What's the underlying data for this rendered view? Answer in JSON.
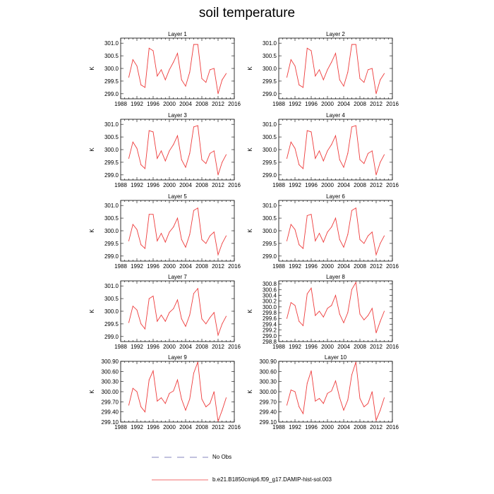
{
  "title": "soil temperature",
  "legend": [
    {
      "label": "No Obs",
      "color": "#5c5ca8",
      "style": "dashed"
    },
    {
      "label": "b.e21.B1850cmip6.f09_g17.DAMIP-hist-sol.003",
      "color": "#ee3b3b",
      "style": "solid"
    }
  ],
  "chart_data": [
    {
      "type": "line",
      "title": "Layer 1",
      "xlabel": "",
      "ylabel": "K",
      "xlim": [
        1988,
        2016
      ],
      "xticks": [
        "1988",
        "1992",
        "1996",
        "2000",
        "2004",
        "2008",
        "2012",
        "2016"
      ],
      "ylim": [
        298.8,
        301.2
      ],
      "yticks": [
        "299.0",
        "299.5",
        "300.0",
        "300.5",
        "301.0"
      ],
      "series": [
        {
          "name": "b.e21.B1850cmip6.f09_g17.DAMIP-hist-sol.003",
          "color": "#ee3b3b",
          "x": [
            1990,
            1991,
            1992,
            1993,
            1994,
            1995,
            1996,
            1997,
            1998,
            1999,
            2000,
            2001,
            2002,
            2003,
            2004,
            2005,
            2006,
            2007,
            2008,
            2009,
            2010,
            2011,
            2012,
            2013,
            2014
          ],
          "y": [
            299.65,
            300.35,
            300.1,
            299.35,
            299.25,
            300.8,
            300.7,
            299.7,
            299.95,
            299.55,
            299.95,
            300.25,
            300.6,
            299.55,
            299.3,
            299.85,
            300.95,
            300.95,
            299.6,
            299.45,
            299.95,
            300.0,
            299.0,
            299.55,
            299.8
          ]
        }
      ]
    },
    {
      "type": "line",
      "title": "Layer 2",
      "xlabel": "",
      "ylabel": "K",
      "xlim": [
        1988,
        2016
      ],
      "xticks": [
        "1988",
        "1992",
        "1996",
        "2000",
        "2004",
        "2008",
        "2012",
        "2016"
      ],
      "ylim": [
        298.8,
        301.2
      ],
      "yticks": [
        "299.0",
        "299.5",
        "300.0",
        "300.5",
        "301.0"
      ],
      "series": [
        {
          "name": "b.e21.B1850cmip6.f09_g17.DAMIP-hist-sol.003",
          "color": "#ee3b3b",
          "x": [
            1990,
            1991,
            1992,
            1993,
            1994,
            1995,
            1996,
            1997,
            1998,
            1999,
            2000,
            2001,
            2002,
            2003,
            2004,
            2005,
            2006,
            2007,
            2008,
            2009,
            2010,
            2011,
            2012,
            2013,
            2014
          ],
          "y": [
            299.65,
            300.35,
            300.1,
            299.35,
            299.25,
            300.8,
            300.7,
            299.7,
            299.95,
            299.55,
            299.95,
            300.25,
            300.6,
            299.55,
            299.3,
            299.85,
            300.95,
            300.95,
            299.6,
            299.45,
            299.95,
            300.0,
            299.0,
            299.55,
            299.8
          ]
        }
      ]
    },
    {
      "type": "line",
      "title": "Layer 3",
      "xlabel": "",
      "ylabel": "K",
      "xlim": [
        1988,
        2016
      ],
      "xticks": [
        "1988",
        "1992",
        "1996",
        "2000",
        "2004",
        "2008",
        "2012",
        "2016"
      ],
      "ylim": [
        298.8,
        301.2
      ],
      "yticks": [
        "299.0",
        "299.5",
        "300.0",
        "300.5",
        "301.0"
      ],
      "series": [
        {
          "name": "b.e21.B1850cmip6.f09_g17.DAMIP-hist-sol.003",
          "color": "#ee3b3b",
          "x": [
            1990,
            1991,
            1992,
            1993,
            1994,
            1995,
            1996,
            1997,
            1998,
            1999,
            2000,
            2001,
            2002,
            2003,
            2004,
            2005,
            2006,
            2007,
            2008,
            2009,
            2010,
            2011,
            2012,
            2013,
            2014
          ],
          "y": [
            299.65,
            300.3,
            300.05,
            299.4,
            299.25,
            300.75,
            300.7,
            299.65,
            299.95,
            299.55,
            299.95,
            300.2,
            300.55,
            299.6,
            299.3,
            299.85,
            300.9,
            300.95,
            299.6,
            299.45,
            299.85,
            299.95,
            299.0,
            299.5,
            299.8
          ]
        }
      ]
    },
    {
      "type": "line",
      "title": "Layer 4",
      "xlabel": "",
      "ylabel": "K",
      "xlim": [
        1988,
        2016
      ],
      "xticks": [
        "1988",
        "1992",
        "1996",
        "2000",
        "2004",
        "2008",
        "2012",
        "2016"
      ],
      "ylim": [
        298.8,
        301.2
      ],
      "yticks": [
        "299.0",
        "299.5",
        "300.0",
        "300.5",
        "301.0"
      ],
      "series": [
        {
          "name": "b.e21.B1850cmip6.f09_g17.DAMIP-hist-sol.003",
          "color": "#ee3b3b",
          "x": [
            1990,
            1991,
            1992,
            1993,
            1994,
            1995,
            1996,
            1997,
            1998,
            1999,
            2000,
            2001,
            2002,
            2003,
            2004,
            2005,
            2006,
            2007,
            2008,
            2009,
            2010,
            2011,
            2012,
            2013,
            2014
          ],
          "y": [
            299.65,
            300.3,
            300.05,
            299.4,
            299.25,
            300.75,
            300.7,
            299.65,
            299.95,
            299.55,
            299.95,
            300.2,
            300.55,
            299.6,
            299.3,
            299.85,
            300.9,
            300.95,
            299.6,
            299.45,
            299.85,
            299.95,
            299.0,
            299.5,
            299.8
          ]
        }
      ]
    },
    {
      "type": "line",
      "title": "Layer 5",
      "xlabel": "",
      "ylabel": "K",
      "xlim": [
        1988,
        2016
      ],
      "xticks": [
        "1988",
        "1992",
        "1996",
        "2000",
        "2004",
        "2008",
        "2012",
        "2016"
      ],
      "ylim": [
        298.8,
        301.2
      ],
      "yticks": [
        "299.0",
        "299.5",
        "300.0",
        "300.5",
        "301.0"
      ],
      "series": [
        {
          "name": "b.e21.B1850cmip6.f09_g17.DAMIP-hist-sol.003",
          "color": "#ee3b3b",
          "x": [
            1990,
            1991,
            1992,
            1993,
            1994,
            1995,
            1996,
            1997,
            1998,
            1999,
            2000,
            2001,
            2002,
            2003,
            2004,
            2005,
            2006,
            2007,
            2008,
            2009,
            2010,
            2011,
            2012,
            2013,
            2014
          ],
          "y": [
            299.6,
            300.25,
            300.05,
            299.45,
            299.3,
            300.65,
            300.65,
            299.6,
            299.9,
            299.55,
            299.95,
            300.15,
            300.5,
            299.65,
            299.35,
            299.85,
            300.8,
            300.9,
            299.65,
            299.5,
            299.8,
            299.95,
            299.05,
            299.5,
            299.8
          ]
        }
      ]
    },
    {
      "type": "line",
      "title": "Layer 6",
      "xlabel": "",
      "ylabel": "K",
      "xlim": [
        1988,
        2016
      ],
      "xticks": [
        "1988",
        "1992",
        "1996",
        "2000",
        "2004",
        "2008",
        "2012",
        "2016"
      ],
      "ylim": [
        298.8,
        301.2
      ],
      "yticks": [
        "299.0",
        "299.5",
        "300.0",
        "300.5",
        "301.0"
      ],
      "series": [
        {
          "name": "b.e21.B1850cmip6.f09_g17.DAMIP-hist-sol.003",
          "color": "#ee3b3b",
          "x": [
            1990,
            1991,
            1992,
            1993,
            1994,
            1995,
            1996,
            1997,
            1998,
            1999,
            2000,
            2001,
            2002,
            2003,
            2004,
            2005,
            2006,
            2007,
            2008,
            2009,
            2010,
            2011,
            2012,
            2013,
            2014
          ],
          "y": [
            299.6,
            300.25,
            300.05,
            299.45,
            299.3,
            300.6,
            300.65,
            299.6,
            299.9,
            299.55,
            299.95,
            300.15,
            300.5,
            299.65,
            299.35,
            299.85,
            300.8,
            300.9,
            299.65,
            299.5,
            299.8,
            299.95,
            299.05,
            299.5,
            299.8
          ]
        }
      ]
    },
    {
      "type": "line",
      "title": "Layer 7",
      "xlabel": "",
      "ylabel": "K",
      "xlim": [
        1988,
        2016
      ],
      "xticks": [
        "1988",
        "1992",
        "1996",
        "2000",
        "2004",
        "2008",
        "2012",
        "2016"
      ],
      "ylim": [
        298.8,
        301.2
      ],
      "yticks": [
        "299.0",
        "299.5",
        "300.0",
        "300.5",
        "301.0"
      ],
      "series": [
        {
          "name": "b.e21.B1850cmip6.f09_g17.DAMIP-hist-sol.003",
          "color": "#ee3b3b",
          "x": [
            1990,
            1991,
            1992,
            1993,
            1994,
            1995,
            1996,
            1997,
            1998,
            1999,
            2000,
            2001,
            2002,
            2003,
            2004,
            2005,
            2006,
            2007,
            2008,
            2009,
            2010,
            2011,
            2012,
            2013,
            2014
          ],
          "y": [
            299.55,
            300.2,
            300.05,
            299.5,
            299.3,
            300.5,
            300.6,
            299.6,
            299.85,
            299.6,
            299.95,
            300.1,
            300.45,
            299.7,
            299.4,
            299.85,
            300.7,
            300.9,
            299.7,
            299.5,
            299.75,
            299.95,
            299.05,
            299.5,
            299.8
          ]
        }
      ]
    },
    {
      "type": "line",
      "title": "Layer 8",
      "xlabel": "",
      "ylabel": "K",
      "xlim": [
        1988,
        2016
      ],
      "xticks": [
        "1988",
        "1992",
        "1996",
        "2000",
        "2004",
        "2008",
        "2012",
        "2016"
      ],
      "ylim": [
        298.8,
        300.9
      ],
      "yticks": [
        "298.8",
        "299.0",
        "299.2",
        "299.4",
        "299.6",
        "299.8",
        "300.0",
        "300.2",
        "300.4",
        "300.6",
        "300.8"
      ],
      "series": [
        {
          "name": "b.e21.B1850cmip6.f09_g17.DAMIP-hist-sol.003",
          "color": "#ee3b3b",
          "x": [
            1990,
            1991,
            1992,
            1993,
            1994,
            1995,
            1996,
            1997,
            1998,
            1999,
            2000,
            2001,
            2002,
            2003,
            2004,
            2005,
            2006,
            2007,
            2008,
            2009,
            2010,
            2011,
            2012,
            2013,
            2014
          ],
          "y": [
            299.6,
            300.15,
            300.05,
            299.5,
            299.35,
            300.45,
            300.65,
            299.7,
            299.85,
            299.65,
            299.95,
            300.05,
            300.4,
            299.75,
            299.45,
            299.8,
            300.6,
            300.85,
            299.75,
            299.55,
            299.7,
            299.95,
            299.1,
            299.5,
            299.85
          ]
        }
      ]
    },
    {
      "type": "line",
      "title": "Layer 9",
      "xlabel": "",
      "ylabel": "K",
      "xlim": [
        1988,
        2016
      ],
      "xticks": [
        "1988",
        "1992",
        "1996",
        "2000",
        "2004",
        "2008",
        "2012",
        "2016"
      ],
      "ylim": [
        299.1,
        300.9
      ],
      "yticks": [
        "299.10",
        "299.40",
        "299.70",
        "300.00",
        "300.30",
        "300.60",
        "300.90"
      ],
      "series": [
        {
          "name": "b.e21.B1850cmip6.f09_g17.DAMIP-hist-sol.003",
          "color": "#ee3b3b",
          "x": [
            1990,
            1991,
            1992,
            1993,
            1994,
            1995,
            1996,
            1997,
            1998,
            1999,
            2000,
            2001,
            2002,
            2003,
            2004,
            2005,
            2006,
            2007,
            2008,
            2009,
            2010,
            2011,
            2012,
            2013,
            2014
          ],
          "y": [
            299.6,
            300.1,
            300.0,
            299.55,
            299.4,
            300.35,
            300.62,
            299.72,
            299.82,
            299.65,
            299.95,
            300.02,
            300.35,
            299.78,
            299.45,
            299.78,
            300.55,
            300.88,
            299.78,
            299.55,
            299.65,
            300.0,
            299.12,
            299.45,
            299.82
          ]
        }
      ]
    },
    {
      "type": "line",
      "title": "Layer 10",
      "xlabel": "",
      "ylabel": "K",
      "xlim": [
        1988,
        2016
      ],
      "xticks": [
        "1988",
        "1992",
        "1996",
        "2000",
        "2004",
        "2008",
        "2012",
        "2016"
      ],
      "ylim": [
        299.1,
        300.9
      ],
      "yticks": [
        "299.10",
        "299.40",
        "299.70",
        "300.00",
        "300.30",
        "300.60",
        "300.90"
      ],
      "series": [
        {
          "name": "b.e21.B1850cmip6.f09_g17.DAMIP-hist-sol.003",
          "color": "#ee3b3b",
          "x": [
            1990,
            1991,
            1992,
            1993,
            1994,
            1995,
            1996,
            1997,
            1998,
            1999,
            2000,
            2001,
            2002,
            2003,
            2004,
            2005,
            2006,
            2007,
            2008,
            2009,
            2010,
            2011,
            2012,
            2013,
            2014
          ],
          "y": [
            299.6,
            300.05,
            300.0,
            299.55,
            299.35,
            300.25,
            300.62,
            299.72,
            299.8,
            299.65,
            299.95,
            300.02,
            300.32,
            299.82,
            299.45,
            299.75,
            300.5,
            300.88,
            299.8,
            299.55,
            299.65,
            300.0,
            299.15,
            299.45,
            299.82
          ]
        }
      ]
    }
  ]
}
